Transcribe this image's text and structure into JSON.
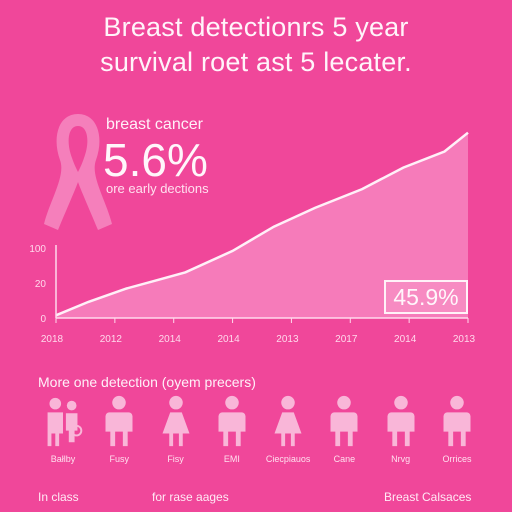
{
  "title_lines": [
    "Breast detectionrs 5 year",
    "survival roet ast 5 lecater."
  ],
  "kpi": {
    "label": "breast cancer",
    "value": "5.6%",
    "sub": "ore early dections"
  },
  "badge": "45.9%",
  "chart_data": {
    "type": "area",
    "x_tick_labels": [
      "2018",
      "2012",
      "2014",
      "2014",
      "2013",
      "2017",
      "2014",
      "2013"
    ],
    "y_tick_labels": [
      "100",
      "20",
      "0"
    ],
    "x": [
      0,
      1,
      2,
      3,
      4,
      5,
      6,
      7
    ],
    "y": [
      2,
      12,
      22,
      33,
      52,
      76,
      98,
      118
    ],
    "series_points": [
      {
        "i": 0,
        "v": 2
      },
      {
        "i": 0.55,
        "v": 12
      },
      {
        "i": 1.2,
        "v": 22
      },
      {
        "i": 1.7,
        "v": 28
      },
      {
        "i": 2.2,
        "v": 34
      },
      {
        "i": 3.0,
        "v": 50
      },
      {
        "i": 3.7,
        "v": 68
      },
      {
        "i": 4.4,
        "v": 82
      },
      {
        "i": 5.2,
        "v": 96
      },
      {
        "i": 5.9,
        "v": 112
      },
      {
        "i": 6.6,
        "v": 124
      },
      {
        "i": 7.2,
        "v": 138
      }
    ],
    "ylim": [
      0,
      140
    ],
    "grid": false,
    "colors": {
      "area": "#f88cc4",
      "line": "#fff0f8",
      "axis": "#ffd9ec"
    }
  },
  "section_title": "More one detection (oyem precers)",
  "people": [
    {
      "label": "Bałlby",
      "icon": "family-icon"
    },
    {
      "label": "Fusy",
      "icon": "man-icon"
    },
    {
      "label": "Fisy",
      "icon": "woman-icon"
    },
    {
      "label": "EMI",
      "icon": "man-icon"
    },
    {
      "label": "Ciecpiauos",
      "icon": "woman-icon"
    },
    {
      "label": "Cane",
      "icon": "man-icon"
    },
    {
      "label": "Nrvg",
      "icon": "man-icon"
    },
    {
      "label": "Orrices",
      "icon": "man-icon"
    }
  ],
  "footer": {
    "left": "In class",
    "middle": "for rase aages",
    "right": "Breast Calsaces"
  }
}
